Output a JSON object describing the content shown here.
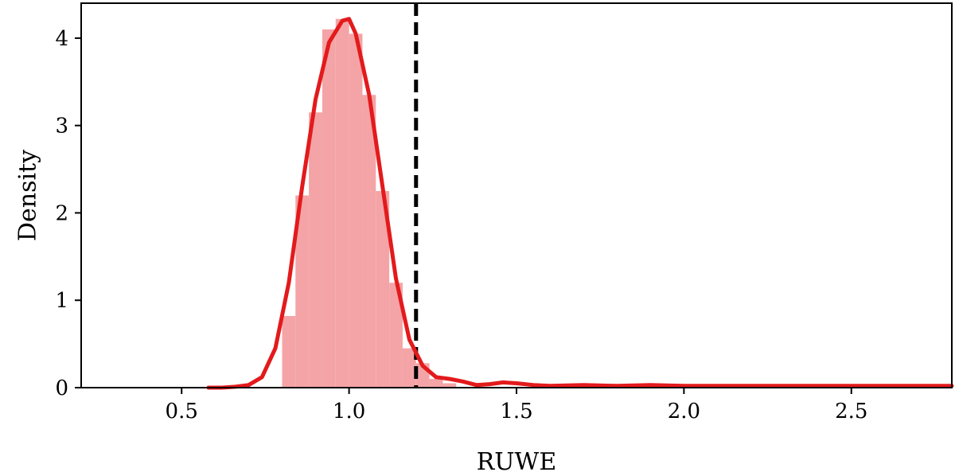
{
  "chart_data": {
    "type": "bar",
    "xlabel": "RUWE",
    "ylabel": "Density",
    "xlim": [
      0.2,
      2.8
    ],
    "ylim": [
      0,
      4.4
    ],
    "x_ticks": [
      0.5,
      1.0,
      1.5,
      2.0,
      2.5
    ],
    "x_tick_labels": [
      "0.5",
      "1.0",
      "1.5",
      "2.0",
      "2.5"
    ],
    "y_ticks": [
      0,
      1,
      2,
      3,
      4
    ],
    "y_tick_labels": [
      "0",
      "1",
      "2",
      "3",
      "4"
    ],
    "grid": false,
    "threshold": 1.2,
    "histogram": {
      "bin_edges": [
        0.8,
        0.84,
        0.88,
        0.92,
        0.96,
        1.0,
        1.04,
        1.08,
        1.12,
        1.16,
        1.2,
        1.24,
        1.28,
        1.32
      ],
      "density": [
        0.82,
        2.2,
        3.15,
        4.1,
        4.22,
        4.05,
        3.35,
        2.25,
        1.2,
        0.45,
        0.28,
        0.1,
        0.05
      ]
    },
    "kde": {
      "x": [
        0.58,
        0.62,
        0.66,
        0.7,
        0.74,
        0.78,
        0.82,
        0.86,
        0.9,
        0.94,
        0.98,
        1.0,
        1.02,
        1.06,
        1.1,
        1.14,
        1.18,
        1.22,
        1.26,
        1.3,
        1.34,
        1.38,
        1.42,
        1.46,
        1.5,
        1.55,
        1.6,
        1.7,
        1.8,
        1.9,
        2.0,
        2.1,
        2.2,
        2.3,
        2.4,
        2.5,
        2.6,
        2.7,
        2.8
      ],
      "y": [
        0.0,
        0.0,
        0.01,
        0.03,
        0.12,
        0.45,
        1.2,
        2.3,
        3.3,
        3.95,
        4.2,
        4.22,
        4.05,
        3.35,
        2.3,
        1.25,
        0.55,
        0.25,
        0.12,
        0.1,
        0.07,
        0.03,
        0.04,
        0.06,
        0.05,
        0.03,
        0.02,
        0.03,
        0.02,
        0.03,
        0.02,
        0.02,
        0.02,
        0.02,
        0.02,
        0.02,
        0.02,
        0.02,
        0.02
      ]
    },
    "colors": {
      "bar": "#f4a4a6",
      "line": "#e31a1c",
      "threshold": "#000000"
    }
  }
}
